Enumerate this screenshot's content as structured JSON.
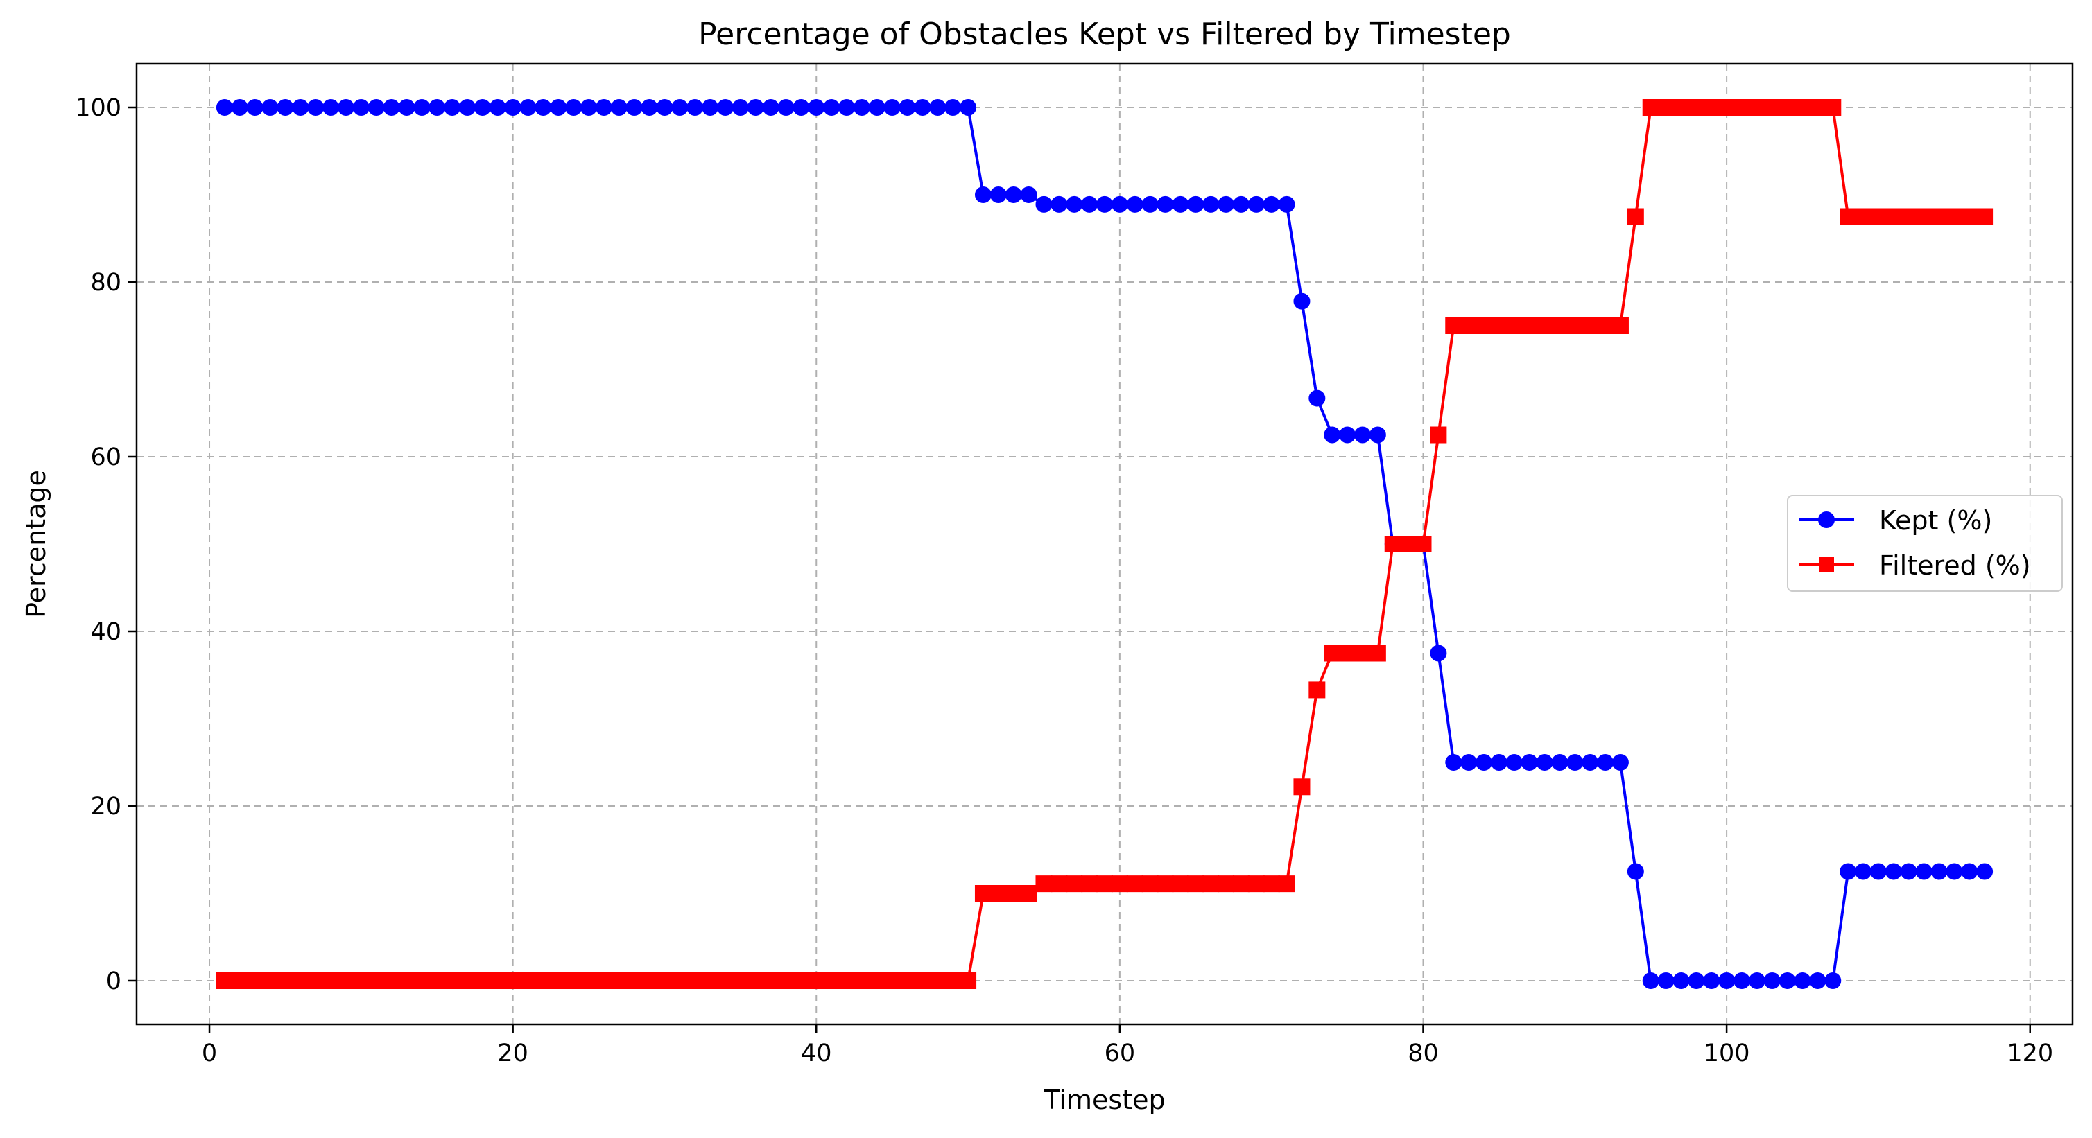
{
  "chart_data": {
    "type": "line",
    "title": "Percentage of Obstacles Kept vs Filtered by Timestep",
    "xlabel": "Timestep",
    "ylabel": "Percentage",
    "xlim": [
      -4.8,
      122.8
    ],
    "ylim": [
      -5,
      105
    ],
    "xticks": [
      0,
      20,
      40,
      60,
      80,
      100,
      120
    ],
    "yticks": [
      0,
      20,
      40,
      60,
      80,
      100
    ],
    "grid": true,
    "legend_position": "center-right",
    "series": [
      {
        "name": "Kept (%)",
        "color": "#0000ff",
        "marker": "circle",
        "x": [
          1,
          2,
          3,
          4,
          5,
          6,
          7,
          8,
          9,
          10,
          11,
          12,
          13,
          14,
          15,
          16,
          17,
          18,
          19,
          20,
          21,
          22,
          23,
          24,
          25,
          26,
          27,
          28,
          29,
          30,
          31,
          32,
          33,
          34,
          35,
          36,
          37,
          38,
          39,
          40,
          41,
          42,
          43,
          44,
          45,
          46,
          47,
          48,
          49,
          50,
          51,
          52,
          53,
          54,
          55,
          56,
          57,
          58,
          59,
          60,
          61,
          62,
          63,
          64,
          65,
          66,
          67,
          68,
          69,
          70,
          71,
          72,
          73,
          74,
          75,
          76,
          77,
          78,
          79,
          80,
          81,
          82,
          83,
          84,
          85,
          86,
          87,
          88,
          89,
          90,
          91,
          92,
          93,
          94,
          95,
          96,
          97,
          98,
          99,
          100,
          101,
          102,
          103,
          104,
          105,
          106,
          107,
          108,
          109,
          110,
          111,
          112,
          113,
          114,
          115,
          116,
          117
        ],
        "values": [
          100,
          100,
          100,
          100,
          100,
          100,
          100,
          100,
          100,
          100,
          100,
          100,
          100,
          100,
          100,
          100,
          100,
          100,
          100,
          100,
          100,
          100,
          100,
          100,
          100,
          100,
          100,
          100,
          100,
          100,
          100,
          100,
          100,
          100,
          100,
          100,
          100,
          100,
          100,
          100,
          100,
          100,
          100,
          100,
          100,
          100,
          100,
          100,
          100,
          100,
          90,
          90,
          90,
          90,
          88.9,
          88.9,
          88.9,
          88.9,
          88.9,
          88.9,
          88.9,
          88.9,
          88.9,
          88.9,
          88.9,
          88.9,
          88.9,
          88.9,
          88.9,
          88.9,
          88.9,
          77.8,
          66.7,
          62.5,
          62.5,
          62.5,
          62.5,
          50,
          50,
          50,
          37.5,
          25,
          25,
          25,
          25,
          25,
          25,
          25,
          25,
          25,
          25,
          25,
          25,
          12.5,
          0,
          0,
          0,
          0,
          0,
          0,
          0,
          0,
          0,
          0,
          0,
          0,
          0,
          12.5,
          12.5,
          12.5,
          12.5,
          12.5,
          12.5,
          12.5,
          12.5,
          12.5,
          12.5
        ]
      },
      {
        "name": "Filtered (%)",
        "color": "#ff0000",
        "marker": "square",
        "x": [
          1,
          2,
          3,
          4,
          5,
          6,
          7,
          8,
          9,
          10,
          11,
          12,
          13,
          14,
          15,
          16,
          17,
          18,
          19,
          20,
          21,
          22,
          23,
          24,
          25,
          26,
          27,
          28,
          29,
          30,
          31,
          32,
          33,
          34,
          35,
          36,
          37,
          38,
          39,
          40,
          41,
          42,
          43,
          44,
          45,
          46,
          47,
          48,
          49,
          50,
          51,
          52,
          53,
          54,
          55,
          56,
          57,
          58,
          59,
          60,
          61,
          62,
          63,
          64,
          65,
          66,
          67,
          68,
          69,
          70,
          71,
          72,
          73,
          74,
          75,
          76,
          77,
          78,
          79,
          80,
          81,
          82,
          83,
          84,
          85,
          86,
          87,
          88,
          89,
          90,
          91,
          92,
          93,
          94,
          95,
          96,
          97,
          98,
          99,
          100,
          101,
          102,
          103,
          104,
          105,
          106,
          107,
          108,
          109,
          110,
          111,
          112,
          113,
          114,
          115,
          116,
          117
        ],
        "values": [
          0,
          0,
          0,
          0,
          0,
          0,
          0,
          0,
          0,
          0,
          0,
          0,
          0,
          0,
          0,
          0,
          0,
          0,
          0,
          0,
          0,
          0,
          0,
          0,
          0,
          0,
          0,
          0,
          0,
          0,
          0,
          0,
          0,
          0,
          0,
          0,
          0,
          0,
          0,
          0,
          0,
          0,
          0,
          0,
          0,
          0,
          0,
          0,
          0,
          0,
          10,
          10,
          10,
          10,
          11.1,
          11.1,
          11.1,
          11.1,
          11.1,
          11.1,
          11.1,
          11.1,
          11.1,
          11.1,
          11.1,
          11.1,
          11.1,
          11.1,
          11.1,
          11.1,
          11.1,
          22.2,
          33.3,
          37.5,
          37.5,
          37.5,
          37.5,
          50,
          50,
          50,
          62.5,
          75,
          75,
          75,
          75,
          75,
          75,
          75,
          75,
          75,
          75,
          75,
          75,
          87.5,
          100,
          100,
          100,
          100,
          100,
          100,
          100,
          100,
          100,
          100,
          100,
          100,
          100,
          87.5,
          87.5,
          87.5,
          87.5,
          87.5,
          87.5,
          87.5,
          87.5,
          87.5,
          87.5
        ]
      }
    ]
  }
}
